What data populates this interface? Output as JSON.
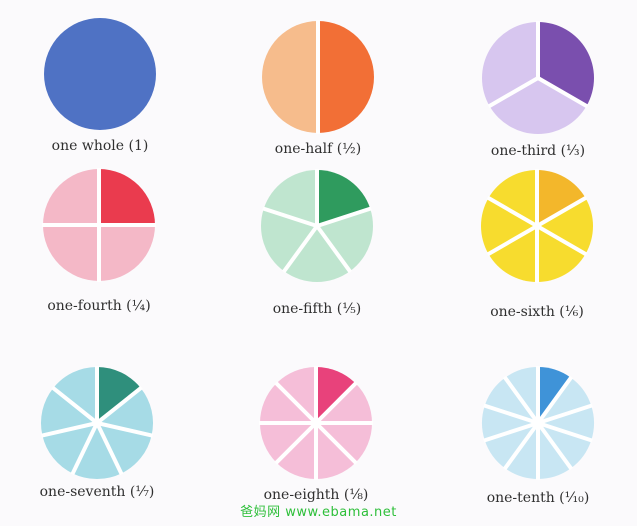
{
  "fractions": [
    {
      "label": "one whole (1)",
      "denominator": 1,
      "shaded": 1,
      "light": "#4f72c4",
      "dark": "#4f72c4"
    },
    {
      "label": "one-half (½)",
      "denominator": 2,
      "shaded": 1,
      "light": "#f6bc8c",
      "dark": "#f26f36"
    },
    {
      "label": "one-third (⅓)",
      "denominator": 3,
      "shaded": 1,
      "light": "#d7c6ef",
      "dark": "#7a4fae"
    },
    {
      "label": "one-fourth (¼)",
      "denominator": 4,
      "shaded": 1,
      "light": "#f4b8c7",
      "dark": "#ea3b4e"
    },
    {
      "label": "one-fifth (⅕)",
      "denominator": 5,
      "shaded": 1,
      "light": "#bfe5cf",
      "dark": "#2f9b5e"
    },
    {
      "label": "one-sixth (⅙)",
      "denominator": 6,
      "shaded": 1,
      "light": "#f7dc2e",
      "dark": "#f3b72b"
    },
    {
      "label": "one-seventh (⅐)",
      "denominator": 7,
      "shaded": 1,
      "light": "#a6dbe6",
      "dark": "#2f8f7c"
    },
    {
      "label": "one-eighth (⅛)",
      "denominator": 8,
      "shaded": 1,
      "light": "#f5bed8",
      "dark": "#e8427b"
    },
    {
      "label": "one-tenth (⅒)",
      "denominator": 10,
      "shaded": 1,
      "light": "#c8e6f3",
      "dark": "#3f93d8"
    }
  ],
  "watermark": "爸妈网 www.ebama.net"
}
